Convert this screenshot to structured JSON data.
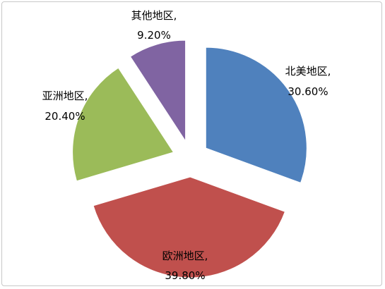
{
  "chart_data": {
    "type": "pie",
    "title": "",
    "categories": [
      "北美地区",
      "欧洲地区",
      "亚洲地区",
      "其他地区"
    ],
    "values": [
      30.6,
      39.8,
      20.4,
      9.2
    ],
    "unit": "%",
    "exploded": true,
    "labels": [
      {
        "name": "北美地区,",
        "value": "30.60%"
      },
      {
        "name": "欧洲地区,",
        "value": "39.80%"
      },
      {
        "name": "亚洲地区,",
        "value": "20.40%"
      },
      {
        "name": "其他地区,",
        "value": "9.20%"
      }
    ],
    "colors": [
      "#4f81bd",
      "#c0504d",
      "#9bbb59",
      "#8064a2"
    ],
    "legend": "none",
    "grid": false
  }
}
